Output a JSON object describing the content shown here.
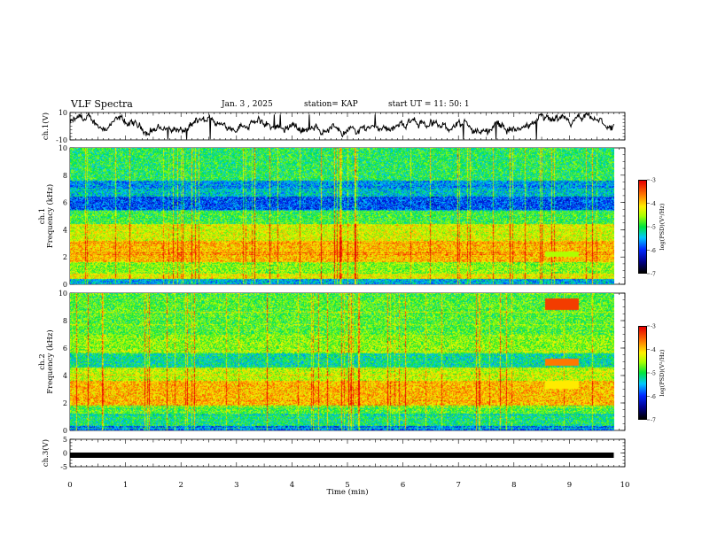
{
  "header": {
    "title": "VLF Spectra",
    "date": "Jan. 3 , 2025",
    "station": "station= KAP",
    "start": "start UT =  11: 50: 1"
  },
  "chart_data": [
    {
      "type": "line",
      "name": "ch1-waveform",
      "ylabel": "ch.1(V)",
      "ylim": [
        -10,
        10
      ],
      "yticks": [
        10,
        -10
      ],
      "xlim": [
        0,
        10
      ],
      "x_end": 9.8,
      "description_values": "quasi-random oscillating trace between about -9 and 8 V"
    },
    {
      "type": "heatmap",
      "name": "ch1-spectrogram",
      "ylabel": "ch.1\nFrequency (kHz)",
      "ylim": [
        0,
        10
      ],
      "yticks": [
        0,
        2,
        4,
        6,
        8,
        10
      ],
      "xlim": [
        0,
        10
      ],
      "x_end": 9.8,
      "bands_khz_log_psd": [
        {
          "f": [
            0,
            0.4
          ],
          "v": -5.5
        },
        {
          "f": [
            0.4,
            0.8
          ],
          "v": -4.2
        },
        {
          "f": [
            0.8,
            1.6
          ],
          "v": -4.6
        },
        {
          "f": [
            1.6,
            3.2
          ],
          "v": -3.9
        },
        {
          "f": [
            3.2,
            4.4
          ],
          "v": -4.3
        },
        {
          "f": [
            4.4,
            5.4
          ],
          "v": -4.9
        },
        {
          "f": [
            5.4,
            6.4
          ],
          "v": -5.9
        },
        {
          "f": [
            6.4,
            7.0
          ],
          "v": -5.4
        },
        {
          "f": [
            7.0,
            7.6
          ],
          "v": -5.6
        },
        {
          "f": [
            7.6,
            10
          ],
          "v": -5.0
        }
      ],
      "colorbar": {
        "label": "log(PSD)(V²/Hz)",
        "range": [
          -7,
          -3
        ],
        "ticks": [
          -3,
          -4,
          -5,
          -6,
          -7
        ]
      }
    },
    {
      "type": "heatmap",
      "name": "ch2-spectrogram",
      "ylabel": "ch.2\nFrequency (kHz)",
      "ylim": [
        0,
        10
      ],
      "yticks": [
        0,
        2,
        4,
        6,
        8,
        10
      ],
      "xlim": [
        0,
        10
      ],
      "x_end": 9.8,
      "bands_khz_log_psd": [
        {
          "f": [
            0,
            0.3
          ],
          "v": -5.8
        },
        {
          "f": [
            0.3,
            1.2
          ],
          "v": -5.1
        },
        {
          "f": [
            1.2,
            1.8
          ],
          "v": -4.8
        },
        {
          "f": [
            1.8,
            3.6
          ],
          "v": -3.9
        },
        {
          "f": [
            3.6,
            4.6
          ],
          "v": -4.4
        },
        {
          "f": [
            4.6,
            5.6
          ],
          "v": -5.2
        },
        {
          "f": [
            5.6,
            7.0
          ],
          "v": -4.6
        },
        {
          "f": [
            7.0,
            10
          ],
          "v": -4.8
        }
      ],
      "colorbar": {
        "label": "log(PSD)(V²/Hz)",
        "range": [
          -7,
          -3
        ],
        "ticks": [
          -3,
          -4,
          -5,
          -6,
          -7
        ]
      }
    },
    {
      "type": "line",
      "name": "ch3-waveform",
      "ylabel": "ch.3(V)",
      "ylim": [
        -5,
        5
      ],
      "yticks": [
        5,
        0,
        -5
      ],
      "xlim": [
        0,
        10
      ],
      "x_end": 9.8,
      "constant_value": -0.8
    }
  ],
  "xaxis": {
    "label": "Time (min)",
    "ticks": [
      0,
      1,
      2,
      3,
      4,
      5,
      6,
      7,
      8,
      9,
      10
    ]
  }
}
